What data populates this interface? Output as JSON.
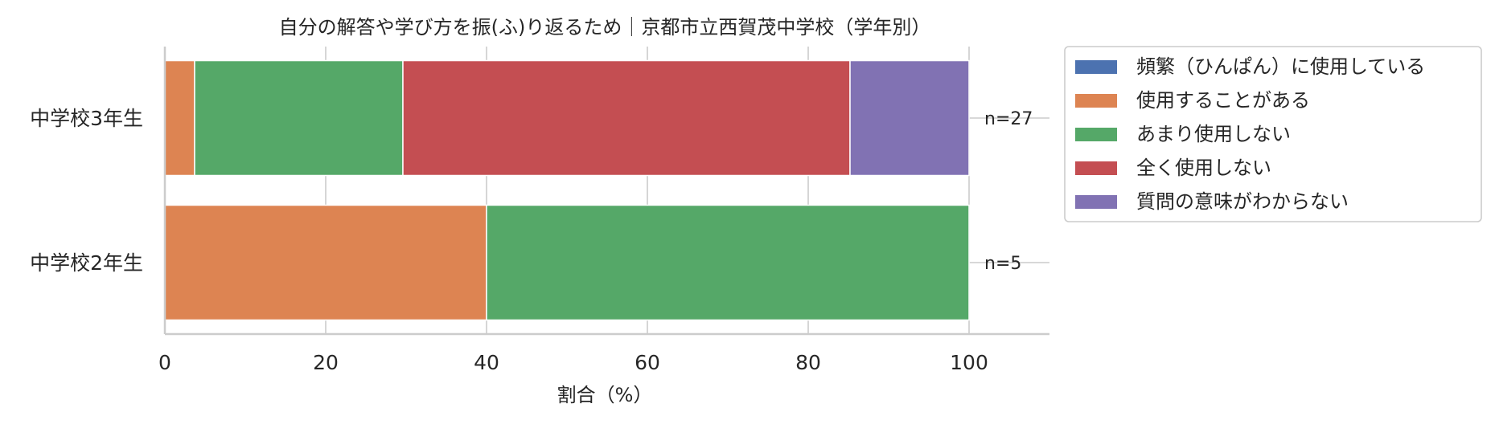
{
  "chart_data": {
    "type": "bar",
    "orientation": "horizontal",
    "stacked": true,
    "title": "自分の解答や学び方を振(ふ)り返るため｜京都市立西賀茂中学校（学年別）",
    "xlabel": "割合（%）",
    "ylabel": "",
    "xlim": [
      0,
      110
    ],
    "xticks": [
      "0",
      "20",
      "40",
      "60",
      "80",
      "100"
    ],
    "grid": true,
    "legend_position": "outside-right",
    "categories": [
      "中学校3年生",
      "中学校2年生"
    ],
    "n_labels": [
      "n=27",
      "n=5"
    ],
    "series": [
      {
        "name": "頻繁（ひんぱん）に使用している",
        "color": "#4c72b0",
        "values": [
          0,
          0
        ]
      },
      {
        "name": "使用することがある",
        "color": "#dd8452",
        "values": [
          3.7,
          40.0
        ]
      },
      {
        "name": "あまり使用しない",
        "color": "#55a868",
        "values": [
          25.9,
          60.0
        ]
      },
      {
        "name": "全く使用しない",
        "color": "#c44e52",
        "values": [
          55.6,
          0
        ]
      },
      {
        "name": "質問の意味がわからない",
        "color": "#8172b3",
        "values": [
          14.8,
          0
        ]
      }
    ]
  }
}
